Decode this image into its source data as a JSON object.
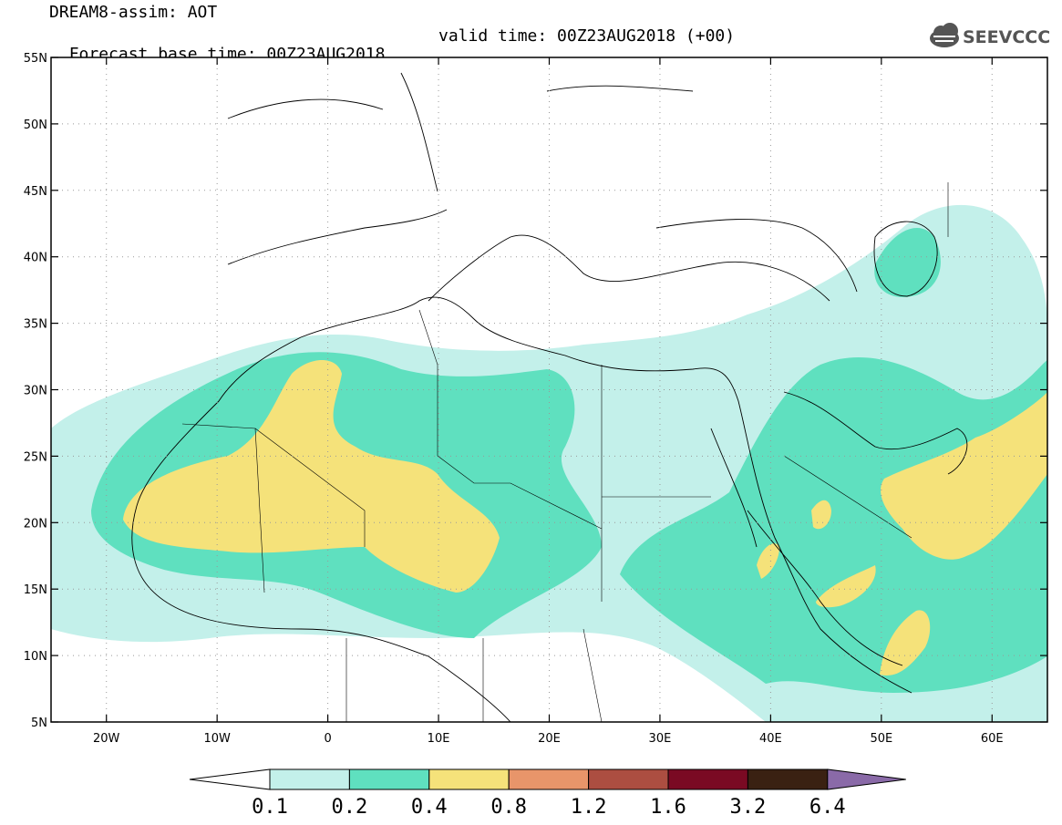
{
  "header": {
    "title": "DREAM8-assim: AOT",
    "base_time": "Forecast base time: 00Z23AUG2018",
    "valid_time": "valid time: 00Z23AUG2018 (+00)"
  },
  "logo": {
    "text": "SEEVCCC",
    "icon": "cloud-icon"
  },
  "map": {
    "lon_range": [
      -25,
      65
    ],
    "lat_range": [
      5,
      55
    ],
    "lon_ticks": [
      {
        "value": -20,
        "label": "20W"
      },
      {
        "value": -10,
        "label": "10W"
      },
      {
        "value": 0,
        "label": "0"
      },
      {
        "value": 10,
        "label": "10E"
      },
      {
        "value": 20,
        "label": "20E"
      },
      {
        "value": 30,
        "label": "30E"
      },
      {
        "value": 40,
        "label": "40E"
      },
      {
        "value": 50,
        "label": "50E"
      },
      {
        "value": 60,
        "label": "60E"
      }
    ],
    "lat_ticks": [
      {
        "value": 55,
        "label": "55N"
      },
      {
        "value": 50,
        "label": "50N"
      },
      {
        "value": 45,
        "label": "45N"
      },
      {
        "value": 40,
        "label": "40N"
      },
      {
        "value": 35,
        "label": "35N"
      },
      {
        "value": 30,
        "label": "30N"
      },
      {
        "value": 25,
        "label": "25N"
      },
      {
        "value": 20,
        "label": "20N"
      },
      {
        "value": 15,
        "label": "15N"
      },
      {
        "value": 10,
        "label": "10N"
      },
      {
        "value": 5,
        "label": "5N"
      }
    ],
    "grid": "dotted"
  },
  "colorbar": {
    "colors": [
      "#ffffff",
      "#c3f0ea",
      "#5fe0bf",
      "#f5e27a",
      "#e8956a",
      "#ac4e41",
      "#7a0a23",
      "#3a2112",
      "#8a6aa8"
    ],
    "labels": [
      "0.1",
      "0.2",
      "0.4",
      "0.8",
      "1.2",
      "1.6",
      "3.2",
      "6.4"
    ]
  }
}
